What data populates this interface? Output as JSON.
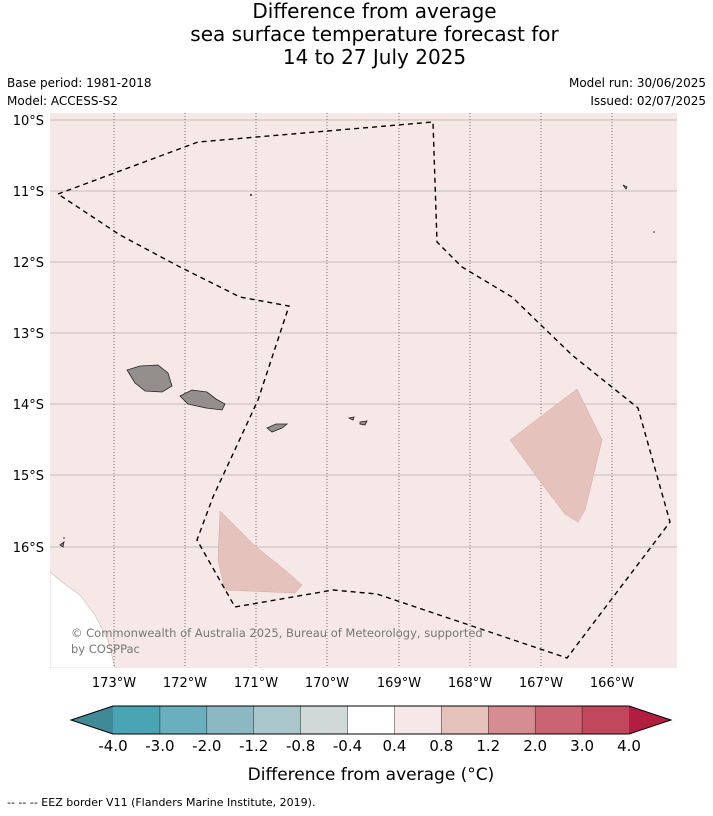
{
  "title": {
    "line1": "Difference from average",
    "line2": "sea surface temperature forecast for",
    "line3": "14 to 27 July 2025"
  },
  "meta_left": {
    "base_period": "Base period: 1981-2018",
    "model": "Model: ACCESS-S2"
  },
  "meta_right": {
    "model_run": "Model run: 30/06/2025",
    "issued": "Issued: 02/07/2025"
  },
  "map": {
    "lat_labels": [
      "10°S",
      "11°S",
      "12°S",
      "13°S",
      "14°S",
      "15°S",
      "16°S"
    ],
    "lon_labels": [
      "173°W",
      "172°W",
      "171°W",
      "170°W",
      "169°W",
      "168°W",
      "167°W",
      "166°W"
    ],
    "background_anomaly_color": "#f5e8e6",
    "warm_patch_color": "#e6c2bd",
    "land_color": "#948f8d",
    "copyright": "© Commonwealth of Australia 2025, Bureau of Meteorology, supported by COSPPac",
    "copyright_line1": "© Commonwealth of Australia 2025, Bureau of Meteorology, supported",
    "copyright_line2": "by COSPPac"
  },
  "colorbar": {
    "labels": [
      "-4.0",
      "-3.0",
      "-2.0",
      "-1.2",
      "-0.8",
      "-0.4",
      "0.4",
      "0.8",
      "1.2",
      "2.0",
      "3.0",
      "4.0"
    ],
    "colors": [
      "#3f8a96",
      "#4aa4b4",
      "#6aafbe",
      "#8cb8c4",
      "#a9c6cb",
      "#d1d9d8",
      "#ffffff",
      "#f5e8e6",
      "#e6c2bd",
      "#d68d92",
      "#cb6472",
      "#c0475c",
      "#b21e3f"
    ],
    "label": "Difference from average (°C)"
  },
  "footnote": "--  --  -- EEZ border V11 (Flanders Marine Institute, 2019)."
}
